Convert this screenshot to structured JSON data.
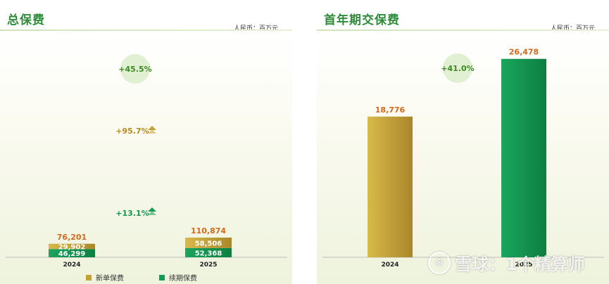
{
  "left": {
    "title": "总保费",
    "unit": "人民币：百万元"
  },
  "right": {
    "title": "首年期交保费",
    "unit": "人民币：百万元"
  },
  "legend": {
    "new_label": "新单保费",
    "renewal_label": "续期保费"
  },
  "colors": {
    "gold": "#c3a233",
    "green": "#169a55",
    "total_label": "#d26a1d",
    "growth_text": "#3c8a24",
    "growth_circle": "#e1efd2"
  },
  "watermark": {
    "text": "雪球：1个精算师",
    "logo_icon": "snowball-icon"
  },
  "chart_data": [
    {
      "type": "bar",
      "stacked": true,
      "title": "总保费",
      "unit": "人民币：百万元",
      "categories": [
        "2024",
        "2025"
      ],
      "series": [
        {
          "name": "续期保费",
          "values": [
            46299,
            52368
          ],
          "value_labels": [
            "46,299",
            "52,368"
          ],
          "growth": "+13.1%"
        },
        {
          "name": "新单保费",
          "values": [
            29902,
            58506
          ],
          "value_labels": [
            "29,902",
            "58,506"
          ],
          "growth": "+95.7%"
        }
      ],
      "totals": [
        76201,
        110874
      ],
      "total_labels": [
        "76,201",
        "110,874"
      ],
      "total_growth": "+45.5%",
      "legend_position": "bottom",
      "grid": false
    },
    {
      "type": "bar",
      "title": "首年期交保费",
      "unit": "人民币：百万元",
      "categories": [
        "2024",
        "2025"
      ],
      "values": [
        18776,
        26478
      ],
      "value_labels": [
        "18,776",
        "26,478"
      ],
      "growth": "+41.0%",
      "grid": false
    }
  ]
}
